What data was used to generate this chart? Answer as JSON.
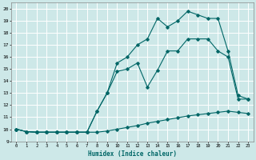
{
  "xlabel": "Humidex (Indice chaleur)",
  "xlim": [
    -0.5,
    23.5
  ],
  "ylim": [
    9.0,
    20.5
  ],
  "yticks": [
    9,
    10,
    11,
    12,
    13,
    14,
    15,
    16,
    17,
    18,
    19,
    20
  ],
  "xticks": [
    0,
    1,
    2,
    3,
    4,
    5,
    6,
    7,
    8,
    9,
    10,
    11,
    12,
    13,
    14,
    15,
    16,
    17,
    18,
    19,
    20,
    21,
    22,
    23
  ],
  "bg_color": "#cde8e8",
  "line_color": "#006666",
  "grid_color": "#ffffff",
  "line1_x": [
    0,
    1,
    2,
    3,
    4,
    5,
    6,
    7,
    8,
    9,
    10,
    11,
    12,
    13,
    14,
    15,
    16,
    17,
    18,
    19,
    20,
    21,
    22,
    23
  ],
  "line1_y": [
    10.0,
    9.8,
    9.75,
    9.75,
    9.75,
    9.75,
    9.75,
    9.75,
    9.75,
    9.85,
    10.0,
    10.15,
    10.3,
    10.5,
    10.65,
    10.8,
    10.95,
    11.1,
    11.2,
    11.3,
    11.4,
    11.5,
    11.4,
    11.3
  ],
  "line2_x": [
    0,
    1,
    2,
    3,
    4,
    5,
    6,
    7,
    8,
    9,
    10,
    11,
    12,
    13,
    14,
    15,
    16,
    17,
    18,
    19,
    20,
    21,
    22,
    23
  ],
  "line2_y": [
    10.0,
    9.8,
    9.75,
    9.75,
    9.75,
    9.75,
    9.75,
    9.75,
    11.5,
    13.0,
    14.8,
    15.0,
    15.5,
    13.5,
    14.9,
    16.5,
    16.5,
    17.5,
    17.5,
    17.5,
    16.5,
    16.0,
    12.5,
    12.5
  ],
  "line3_x": [
    0,
    1,
    2,
    3,
    4,
    5,
    6,
    7,
    8,
    9,
    10,
    11,
    12,
    13,
    14,
    15,
    16,
    17,
    18,
    19,
    20,
    21,
    22,
    23
  ],
  "line3_y": [
    10.0,
    9.8,
    9.75,
    9.75,
    9.75,
    9.75,
    9.75,
    9.75,
    11.5,
    13.0,
    15.5,
    16.0,
    17.0,
    17.5,
    19.2,
    18.5,
    19.0,
    19.8,
    19.5,
    19.2,
    19.2,
    16.5,
    12.8,
    12.5
  ]
}
